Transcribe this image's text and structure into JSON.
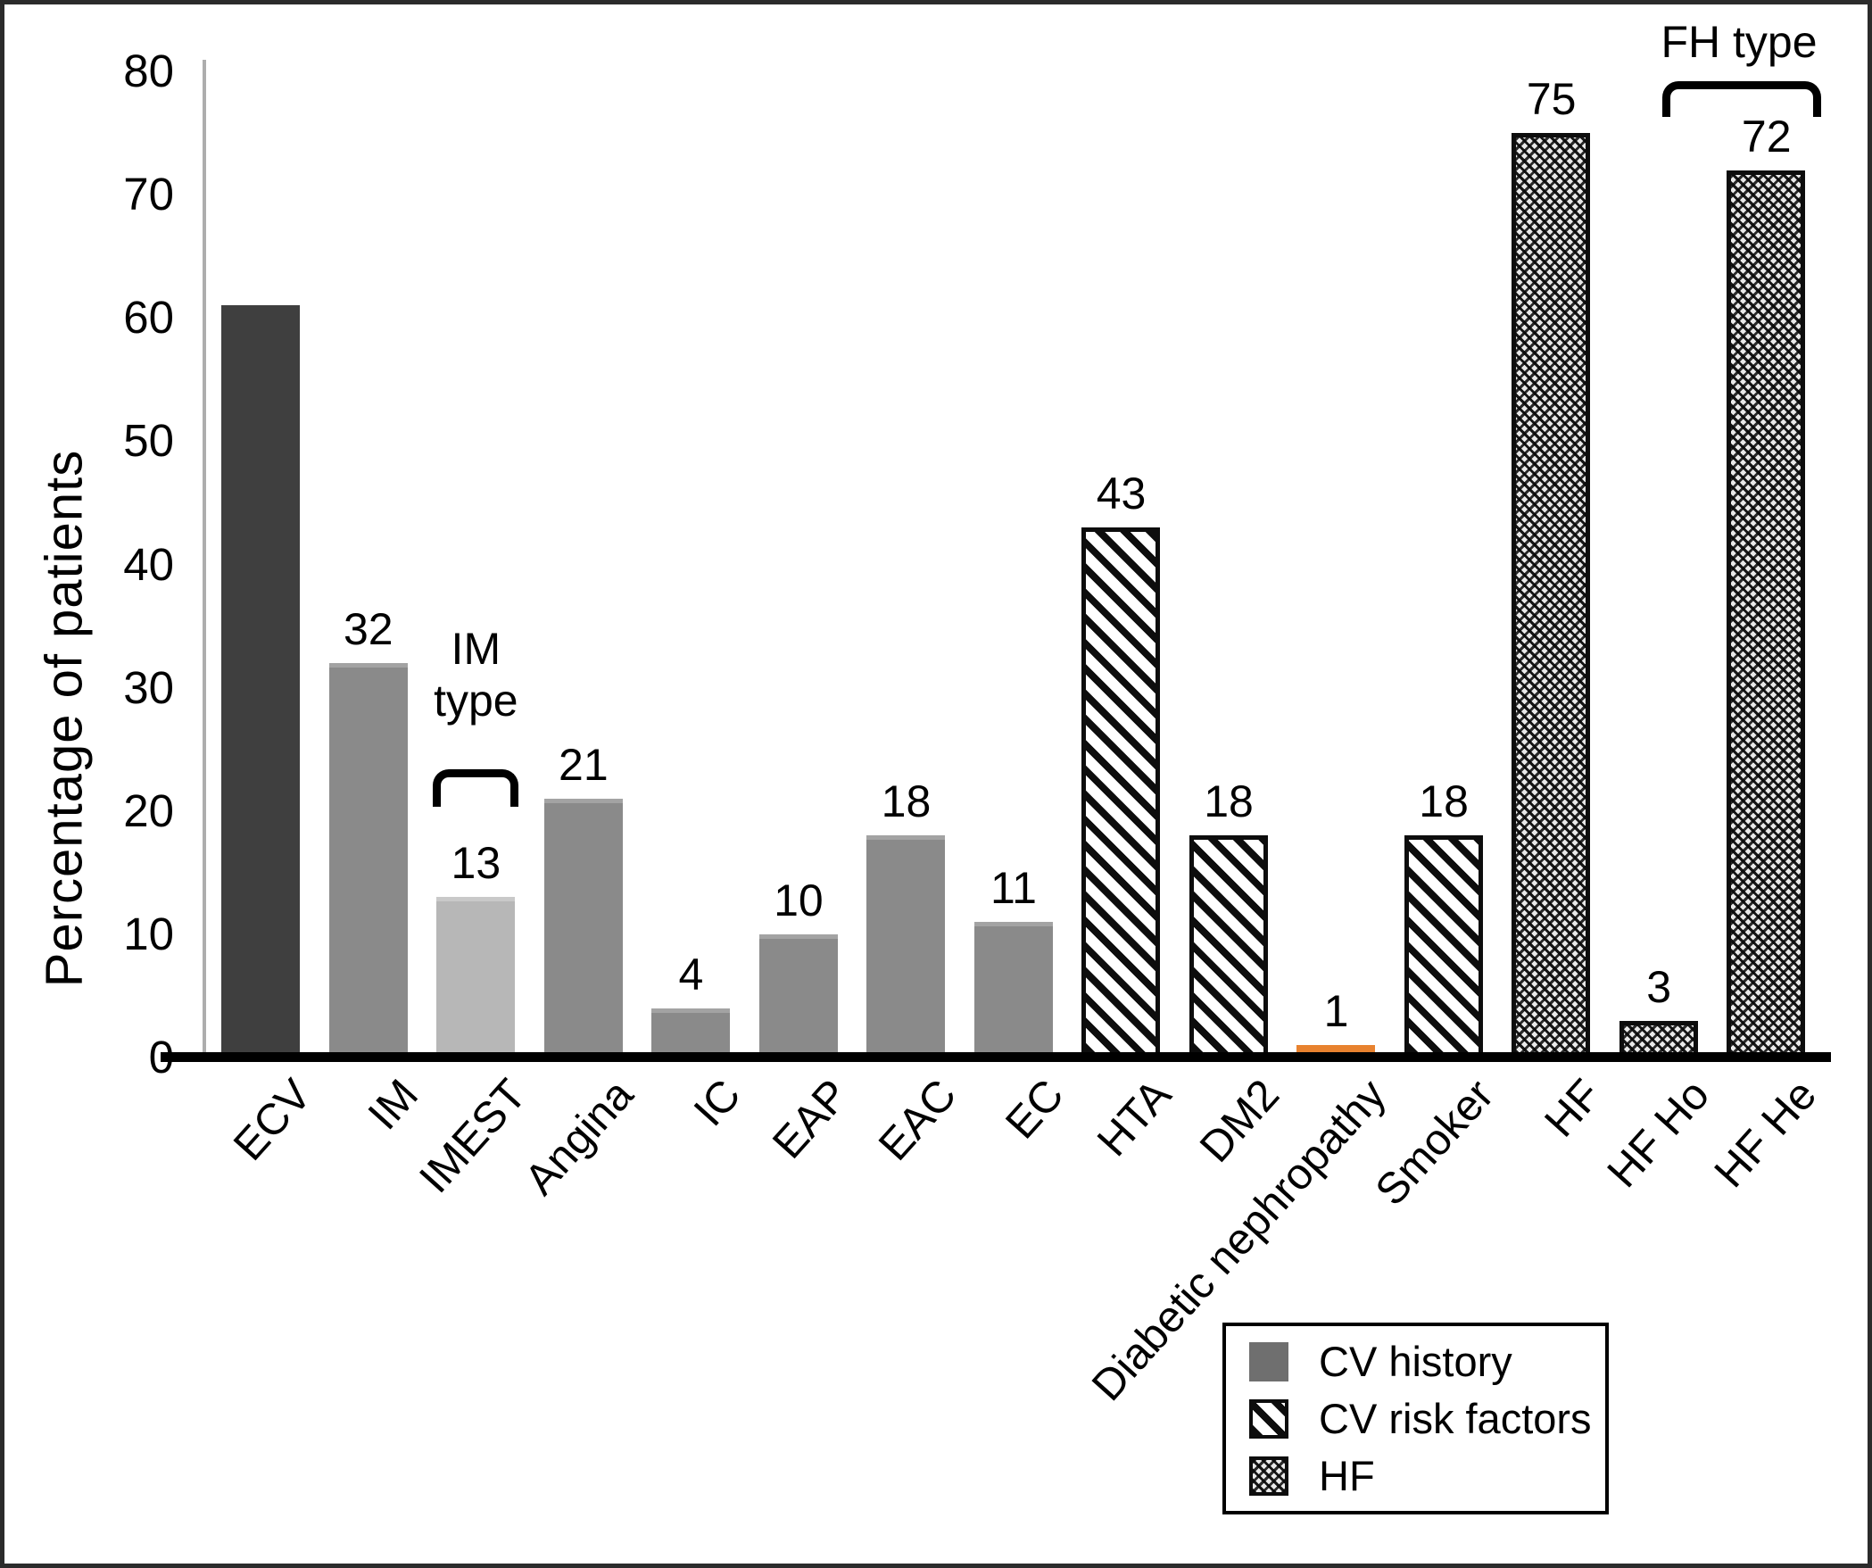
{
  "chart_data": {
    "type": "bar",
    "title": "",
    "xlabel": "",
    "ylabel": "Percentage of patients",
    "ylim": [
      0,
      80
    ],
    "yticks": [
      "0",
      "10",
      "20",
      "30",
      "40",
      "50",
      "60",
      "70",
      "80"
    ],
    "grid": false,
    "legend_position": "inside-bottom-right",
    "categories": [
      "ECV",
      "IM",
      "IMEST",
      "Angina",
      "IC",
      "EAP",
      "EAC",
      "EC",
      "HTA",
      "DM2",
      "Diabetic nephropathy",
      "Smoker",
      "HF",
      "HF Ho",
      "HF He"
    ],
    "values": [
      61,
      32,
      13,
      21,
      4,
      10,
      18,
      11,
      43,
      18,
      1,
      18,
      75,
      3,
      72
    ],
    "bar_value_labels": [
      "",
      "32",
      "13",
      "21",
      "4",
      "10",
      "18",
      "11",
      "43",
      "18",
      "1",
      "18",
      "75",
      "3",
      "72"
    ],
    "bar_styles": [
      "solid-darkgray",
      "solid-gray",
      "solid-lightgray",
      "solid-gray",
      "solid-gray",
      "solid-gray",
      "solid-gray",
      "solid-gray",
      "diagonal-hatch",
      "diagonal-hatch",
      "solid-orange",
      "diagonal-hatch",
      "checkered",
      "checkered",
      "checkered"
    ],
    "bar_groups": [
      "CV history",
      "CV history",
      "CV history",
      "CV history",
      "CV history",
      "CV history",
      "CV history",
      "CV history",
      "CV risk factors",
      "CV risk factors",
      "CV risk factors",
      "CV risk factors",
      "HF",
      "HF",
      "HF"
    ],
    "annotations": [
      {
        "id": "im-type",
        "lines": [
          "IM",
          "type"
        ],
        "over_category": "IMEST"
      },
      {
        "id": "fh-type",
        "lines": [
          "FH type"
        ],
        "over_categories": [
          "HF Ho",
          "HF He"
        ]
      }
    ],
    "legend": [
      {
        "label": "CV history",
        "swatch": "solid-gray"
      },
      {
        "label": "CV risk factors",
        "swatch": "diagonal-hatch"
      },
      {
        "label": "HF",
        "swatch": "checkered"
      }
    ]
  },
  "colors": {
    "bar_dark_gray": "#3F3F3F",
    "bar_gray": "#8A8A8A",
    "bar_light_gray": "#B7B7B7",
    "bar_orange": "#E8822F",
    "legend_gray": "#6F6F6F",
    "hatch_black": "#0D0D0D",
    "axis_line": "#ADADAD",
    "baseline": "#000000"
  }
}
